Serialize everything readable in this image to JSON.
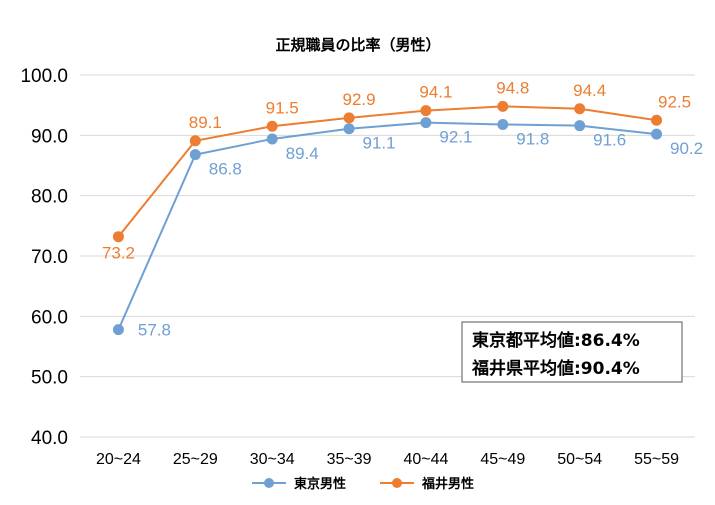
{
  "chart_data": {
    "type": "line",
    "title": "正規職員の比率（男性）",
    "categories": [
      "20~24",
      "25~29",
      "30~34",
      "35~39",
      "40~44",
      "45~49",
      "50~54",
      "55~59"
    ],
    "series": [
      {
        "name": "東京男性",
        "color": "#6FA0D4",
        "values": [
          57.8,
          86.8,
          89.4,
          91.1,
          92.1,
          91.8,
          91.6,
          90.2
        ]
      },
      {
        "name": "福井男性",
        "color": "#ED7D31",
        "values": [
          73.2,
          89.1,
          91.5,
          92.9,
          94.1,
          94.8,
          94.4,
          92.5
        ]
      }
    ],
    "ylim": [
      40,
      100
    ],
    "yticks": [
      "40.0",
      "50.0",
      "60.0",
      "70.0",
      "80.0",
      "90.0",
      "100.0"
    ],
    "grid": true,
    "legend": "bottom",
    "annotations": [
      "東京都平均値:86.4%",
      "福井県平均値:90.4%"
    ]
  }
}
